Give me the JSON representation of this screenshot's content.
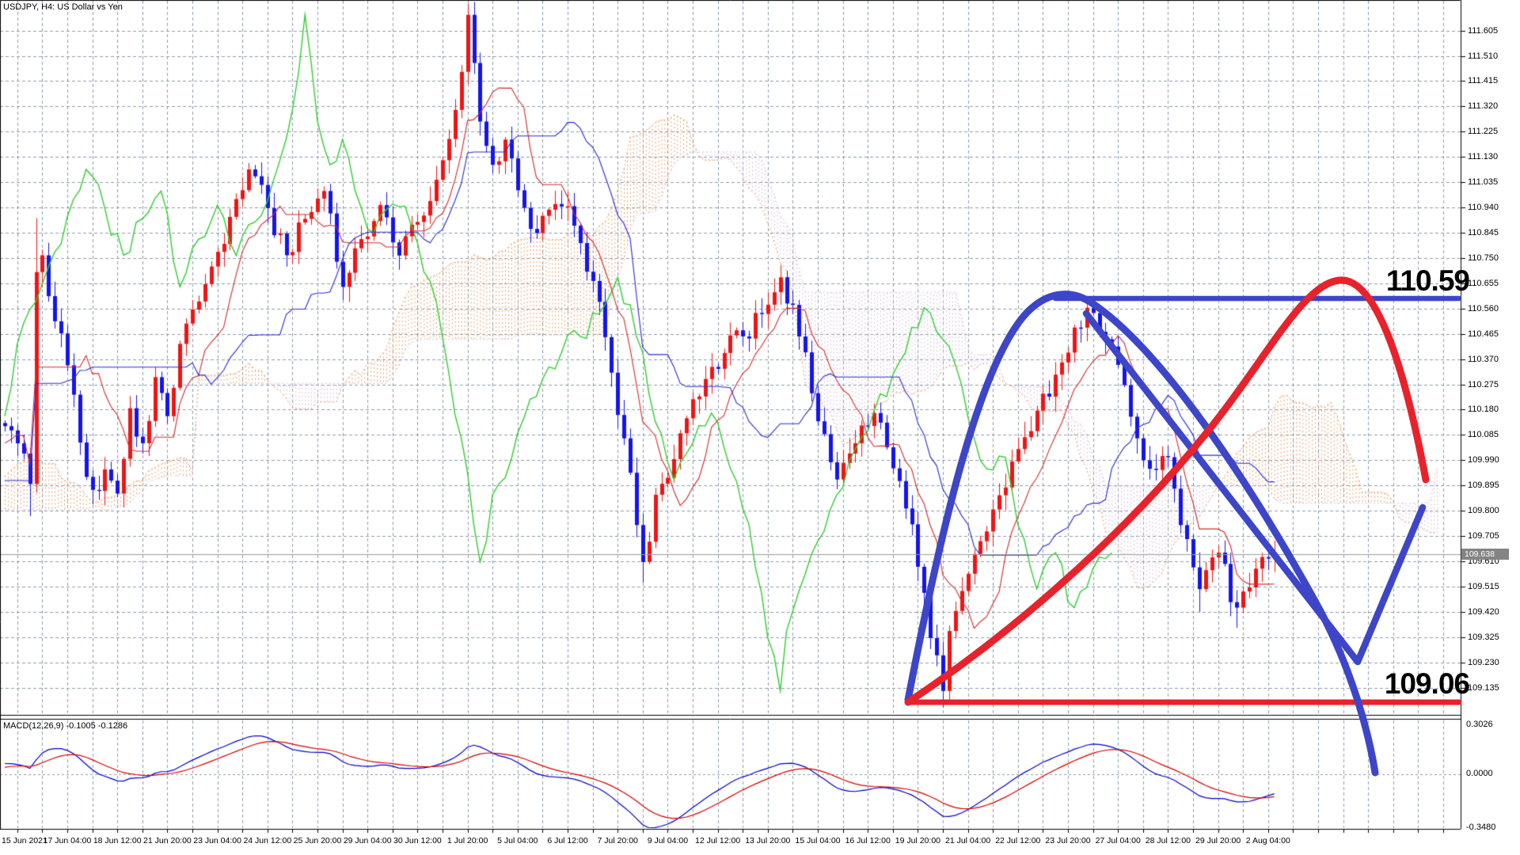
{
  "window": {
    "title": "USDJPY, H4: US Dollar vs Yen"
  },
  "indicator": {
    "label": "MACD(12,26,9) -0.1005 -0.1286"
  },
  "price_axis": {
    "ticks": [
      "111.605",
      "111.510",
      "111.415",
      "111.320",
      "111.225",
      "111.130",
      "111.035",
      "110.940",
      "110.845",
      "110.750",
      "110.655",
      "110.560",
      "110.465",
      "110.370",
      "110.275",
      "110.180",
      "110.085",
      "109.990",
      "109.895",
      "109.800",
      "109.705",
      "109.610",
      "109.515",
      "109.420",
      "109.325",
      "109.230",
      "109.135"
    ],
    "current_price": "109.638"
  },
  "macd_axis": {
    "ticks": [
      "0.3026",
      "0.0000",
      "-0.3480"
    ]
  },
  "time_axis": {
    "labels": [
      "15 Jun 2021",
      "17 Jun 04:00",
      "18 Jun 12:00",
      "21 Jun 20:00",
      "23 Jun 04:00",
      "24 Jun 12:00",
      "25 Jun 20:00",
      "29 Jun 04:00",
      "30 Jun 12:00",
      "1 Jul 20:00",
      "5 Jul 04:00",
      "6 Jul 12:00",
      "7 Jul 20:00",
      "9 Jul 04:00",
      "12 Jul 12:00",
      "13 Jul 20:00",
      "15 Jul 04:00",
      "16 Jul 12:00",
      "19 Jul 20:00",
      "21 Jul 04:00",
      "22 Jul 12:00",
      "23 Jul 20:00",
      "27 Jul 04:00",
      "28 Jul 12:00",
      "29 Jul 20:00",
      "2 Aug 04:00"
    ]
  },
  "annotations": {
    "resistance_label": "110.59",
    "support_label": "109.06",
    "blue": "#3d46c8",
    "red": "#e8222b"
  },
  "chart_data": {
    "type": "candlestick",
    "symbol": "USDJPY",
    "timeframe": "H4",
    "title": "USDJPY, H4: US Dollar vs Yen",
    "price_range_labels": [
      109.135,
      111.605
    ],
    "price_step": 0.095,
    "key_levels": [
      {
        "price": 110.59,
        "role": "resistance",
        "color": "#3d46c8"
      },
      {
        "price": 109.06,
        "role": "support",
        "color": "#e8222b"
      }
    ],
    "last_price": 109.638,
    "bars_total": 204,
    "bars_per_time_label": 8,
    "overlays": {
      "ichimoku": {
        "tenkan": 9,
        "kijun": 26,
        "senkou": 52
      }
    },
    "sub_indicator": {
      "name": "MACD",
      "params": [
        12,
        26,
        9
      ],
      "values": [
        -0.1005,
        -0.1286
      ],
      "scale": [
        -0.348,
        0.3026
      ]
    },
    "colors": {
      "bull": "#f01414",
      "bear": "#1414f0",
      "tenkan": "#d42b2b",
      "kijun": "#2b2bd4",
      "chikou": "#32cd32",
      "span_a": "#eba06a",
      "span_b": "#dcc0dc",
      "grid": "#8e9cae",
      "macd_main": "#0000cd",
      "macd_signal": "#d40000",
      "current_line": "#9c9c9c"
    },
    "close_anchors": [
      [
        -60,
        109.45
      ],
      [
        -50,
        109.8
      ],
      [
        -40,
        110.15
      ],
      [
        -32,
        109.85
      ],
      [
        -24,
        110.05
      ],
      [
        -16,
        109.7
      ],
      [
        -8,
        110.0
      ],
      [
        -2,
        110.15
      ],
      [
        0,
        110.12
      ],
      [
        2,
        110.06
      ],
      [
        4,
        109.9
      ],
      [
        5,
        110.7
      ],
      [
        6,
        110.76
      ],
      [
        8,
        110.52
      ],
      [
        10,
        110.35
      ],
      [
        12,
        110.06
      ],
      [
        14,
        109.88
      ],
      [
        16,
        109.96
      ],
      [
        18,
        109.86
      ],
      [
        20,
        110.18
      ],
      [
        22,
        110.06
      ],
      [
        24,
        110.3
      ],
      [
        26,
        110.16
      ],
      [
        28,
        110.42
      ],
      [
        30,
        110.56
      ],
      [
        33,
        110.72
      ],
      [
        36,
        110.9
      ],
      [
        39,
        111.08
      ],
      [
        42,
        110.94
      ],
      [
        45,
        110.76
      ],
      [
        48,
        110.9
      ],
      [
        51,
        111.0
      ],
      [
        54,
        110.64
      ],
      [
        57,
        110.82
      ],
      [
        60,
        110.94
      ],
      [
        63,
        110.76
      ],
      [
        66,
        110.88
      ],
      [
        69,
        111.04
      ],
      [
        72,
        111.3
      ],
      [
        74,
        111.66
      ],
      [
        76,
        111.26
      ],
      [
        78,
        111.1
      ],
      [
        80,
        111.2
      ],
      [
        82,
        111.0
      ],
      [
        85,
        110.84
      ],
      [
        88,
        110.96
      ],
      [
        91,
        110.88
      ],
      [
        94,
        110.66
      ],
      [
        97,
        110.32
      ],
      [
        100,
        109.94
      ],
      [
        102,
        109.6
      ],
      [
        104,
        109.86
      ],
      [
        106,
        109.92
      ],
      [
        109,
        110.14
      ],
      [
        112,
        110.3
      ],
      [
        115,
        110.4
      ],
      [
        118,
        110.46
      ],
      [
        121,
        110.54
      ],
      [
        124,
        110.68
      ],
      [
        127,
        110.46
      ],
      [
        130,
        110.14
      ],
      [
        133,
        109.92
      ],
      [
        136,
        110.06
      ],
      [
        139,
        110.16
      ],
      [
        142,
        109.96
      ],
      [
        145,
        109.74
      ],
      [
        148,
        109.32
      ],
      [
        150,
        109.12
      ],
      [
        151,
        109.34
      ],
      [
        153,
        109.5
      ],
      [
        156,
        109.68
      ],
      [
        159,
        109.86
      ],
      [
        162,
        110.04
      ],
      [
        165,
        110.18
      ],
      [
        168,
        110.32
      ],
      [
        171,
        110.48
      ],
      [
        173,
        110.57
      ],
      [
        175,
        110.47
      ],
      [
        178,
        110.35
      ],
      [
        181,
        110.07
      ],
      [
        184,
        109.95
      ],
      [
        186,
        110.01
      ],
      [
        188,
        109.75
      ],
      [
        191,
        109.51
      ],
      [
        194,
        109.65
      ],
      [
        197,
        109.43
      ],
      [
        200,
        109.58
      ],
      [
        203,
        109.64
      ]
    ],
    "special_wicks": {
      "4": {
        "low": 109.78
      },
      "5": {
        "high": 110.9
      },
      "74": {
        "high": 111.685
      },
      "102": {
        "low": 109.53
      },
      "150": {
        "low": 109.06
      },
      "191": {
        "low": 109.42
      },
      "197": {
        "low": 109.36
      }
    }
  }
}
